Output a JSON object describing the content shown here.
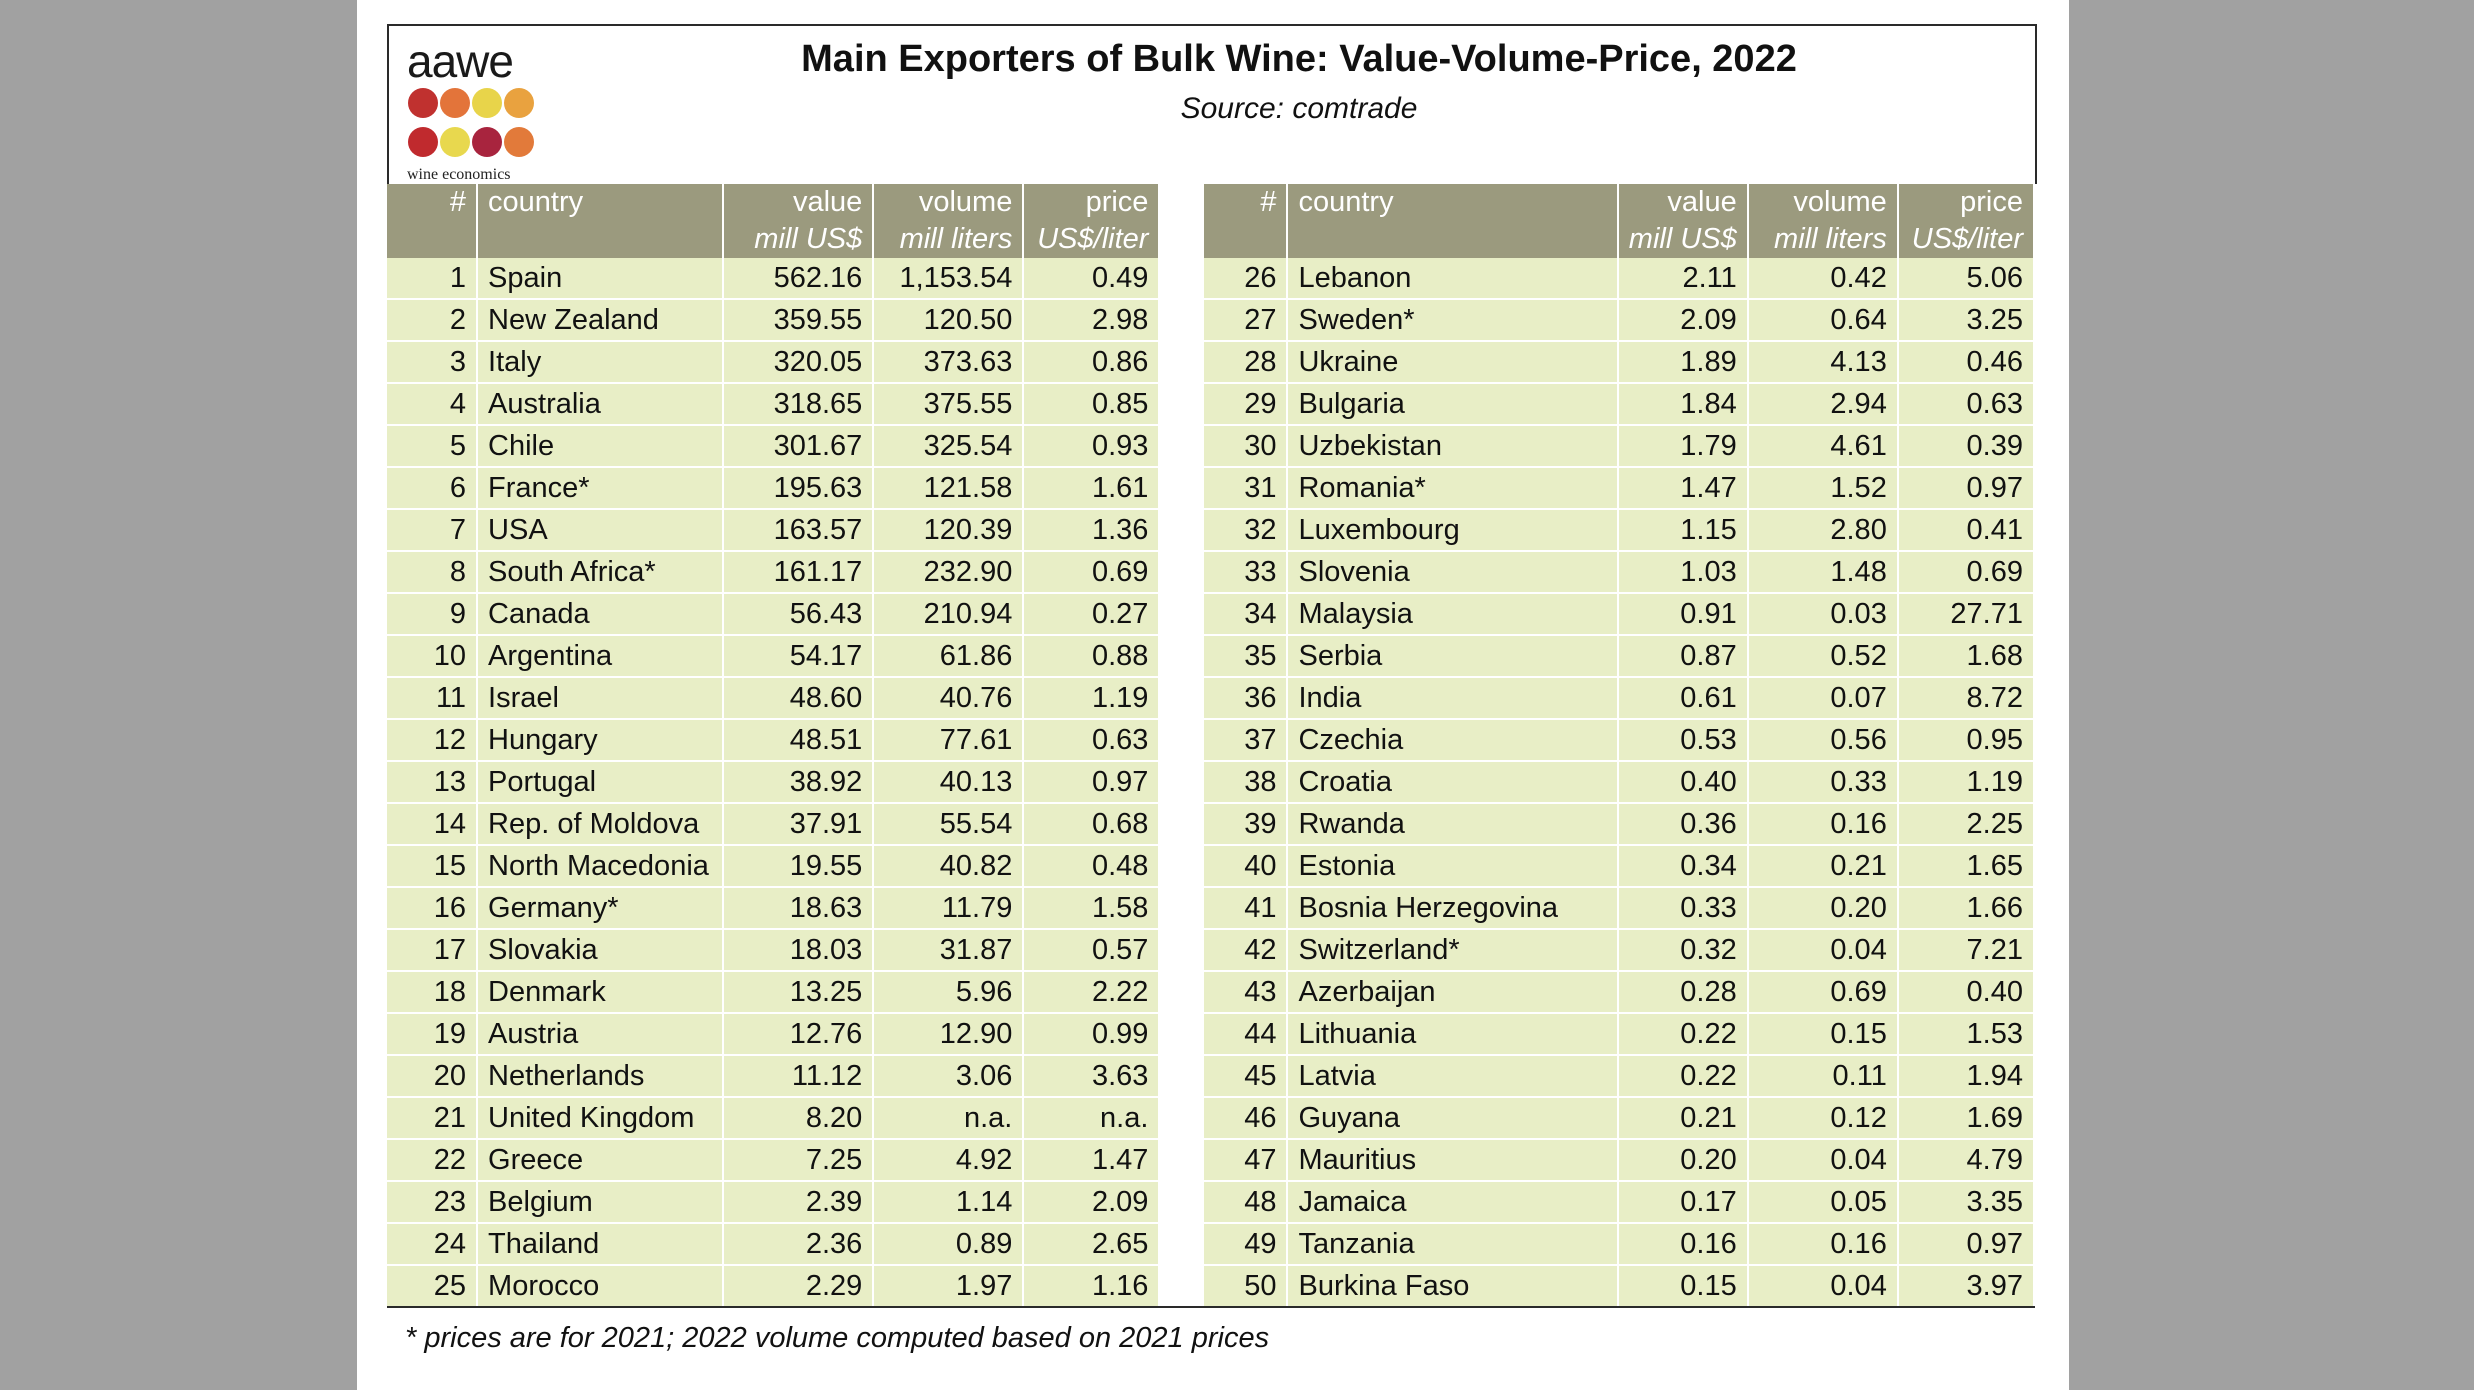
{
  "title": "Main Exporters of Bulk Wine: Value-Volume-Price, 2022",
  "subtitle": "Source: comtrade",
  "logo": {
    "word": "aawe",
    "sub": "wine economics",
    "dot_colors": [
      "#c0312f",
      "#e3743a",
      "#e8d44a",
      "#e9a23f",
      "#c02a2e",
      "#e8d84e",
      "#a8243e",
      "#e27a3a"
    ]
  },
  "headers": {
    "rank": "#",
    "country": "country",
    "value": "value",
    "value_unit": "mill US$",
    "volume": "volume",
    "volume_unit": "mill liters",
    "price": "price",
    "price_unit": "US$/liter"
  },
  "rows_left": [
    [
      "1",
      "Spain",
      "562.16",
      "1,153.54",
      "0.49"
    ],
    [
      "2",
      "New Zealand",
      "359.55",
      "120.50",
      "2.98"
    ],
    [
      "3",
      "Italy",
      "320.05",
      "373.63",
      "0.86"
    ],
    [
      "4",
      "Australia",
      "318.65",
      "375.55",
      "0.85"
    ],
    [
      "5",
      "Chile",
      "301.67",
      "325.54",
      "0.93"
    ],
    [
      "6",
      "France*",
      "195.63",
      "121.58",
      "1.61"
    ],
    [
      "7",
      "USA",
      "163.57",
      "120.39",
      "1.36"
    ],
    [
      "8",
      "South Africa*",
      "161.17",
      "232.90",
      "0.69"
    ],
    [
      "9",
      "Canada",
      "56.43",
      "210.94",
      "0.27"
    ],
    [
      "10",
      "Argentina",
      "54.17",
      "61.86",
      "0.88"
    ],
    [
      "11",
      "Israel",
      "48.60",
      "40.76",
      "1.19"
    ],
    [
      "12",
      "Hungary",
      "48.51",
      "77.61",
      "0.63"
    ],
    [
      "13",
      "Portugal",
      "38.92",
      "40.13",
      "0.97"
    ],
    [
      "14",
      "Rep. of Moldova",
      "37.91",
      "55.54",
      "0.68"
    ],
    [
      "15",
      "North Macedonia",
      "19.55",
      "40.82",
      "0.48"
    ],
    [
      "16",
      "Germany*",
      "18.63",
      "11.79",
      "1.58"
    ],
    [
      "17",
      "Slovakia",
      "18.03",
      "31.87",
      "0.57"
    ],
    [
      "18",
      "Denmark",
      "13.25",
      "5.96",
      "2.22"
    ],
    [
      "19",
      "Austria",
      "12.76",
      "12.90",
      "0.99"
    ],
    [
      "20",
      "Netherlands",
      "11.12",
      "3.06",
      "3.63"
    ],
    [
      "21",
      "United Kingdom",
      "8.20",
      "n.a.",
      "n.a."
    ],
    [
      "22",
      "Greece",
      "7.25",
      "4.92",
      "1.47"
    ],
    [
      "23",
      "Belgium",
      "2.39",
      "1.14",
      "2.09"
    ],
    [
      "24",
      "Thailand",
      "2.36",
      "0.89",
      "2.65"
    ],
    [
      "25",
      "Morocco",
      "2.29",
      "1.97",
      "1.16"
    ]
  ],
  "rows_right": [
    [
      "26",
      "Lebanon",
      "2.11",
      "0.42",
      "5.06"
    ],
    [
      "27",
      "Sweden*",
      "2.09",
      "0.64",
      "3.25"
    ],
    [
      "28",
      "Ukraine",
      "1.89",
      "4.13",
      "0.46"
    ],
    [
      "29",
      "Bulgaria",
      "1.84",
      "2.94",
      "0.63"
    ],
    [
      "30",
      "Uzbekistan",
      "1.79",
      "4.61",
      "0.39"
    ],
    [
      "31",
      "Romania*",
      "1.47",
      "1.52",
      "0.97"
    ],
    [
      "32",
      "Luxembourg",
      "1.15",
      "2.80",
      "0.41"
    ],
    [
      "33",
      "Slovenia",
      "1.03",
      "1.48",
      "0.69"
    ],
    [
      "34",
      "Malaysia",
      "0.91",
      "0.03",
      "27.71"
    ],
    [
      "35",
      "Serbia",
      "0.87",
      "0.52",
      "1.68"
    ],
    [
      "36",
      "India",
      "0.61",
      "0.07",
      "8.72"
    ],
    [
      "37",
      "Czechia",
      "0.53",
      "0.56",
      "0.95"
    ],
    [
      "38",
      "Croatia",
      "0.40",
      "0.33",
      "1.19"
    ],
    [
      "39",
      "Rwanda",
      "0.36",
      "0.16",
      "2.25"
    ],
    [
      "40",
      "Estonia",
      "0.34",
      "0.21",
      "1.65"
    ],
    [
      "41",
      "Bosnia Herzegovina",
      "0.33",
      "0.20",
      "1.66"
    ],
    [
      "42",
      "Switzerland*",
      "0.32",
      "0.04",
      "7.21"
    ],
    [
      "43",
      "Azerbaijan",
      "0.28",
      "0.69",
      "0.40"
    ],
    [
      "44",
      "Lithuania",
      "0.22",
      "0.15",
      "1.53"
    ],
    [
      "45",
      "Latvia",
      "0.22",
      "0.11",
      "1.94"
    ],
    [
      "46",
      "Guyana",
      "0.21",
      "0.12",
      "1.69"
    ],
    [
      "47",
      "Mauritius",
      "0.20",
      "0.04",
      "4.79"
    ],
    [
      "48",
      "Jamaica",
      "0.17",
      "0.05",
      "3.35"
    ],
    [
      "49",
      "Tanzania",
      "0.16",
      "0.16",
      "0.97"
    ],
    [
      "50",
      "Burkina Faso",
      "0.15",
      "0.04",
      "3.97"
    ]
  ],
  "footnote": "* prices are for 2021; 2022 volume computed based on 2021 prices"
}
